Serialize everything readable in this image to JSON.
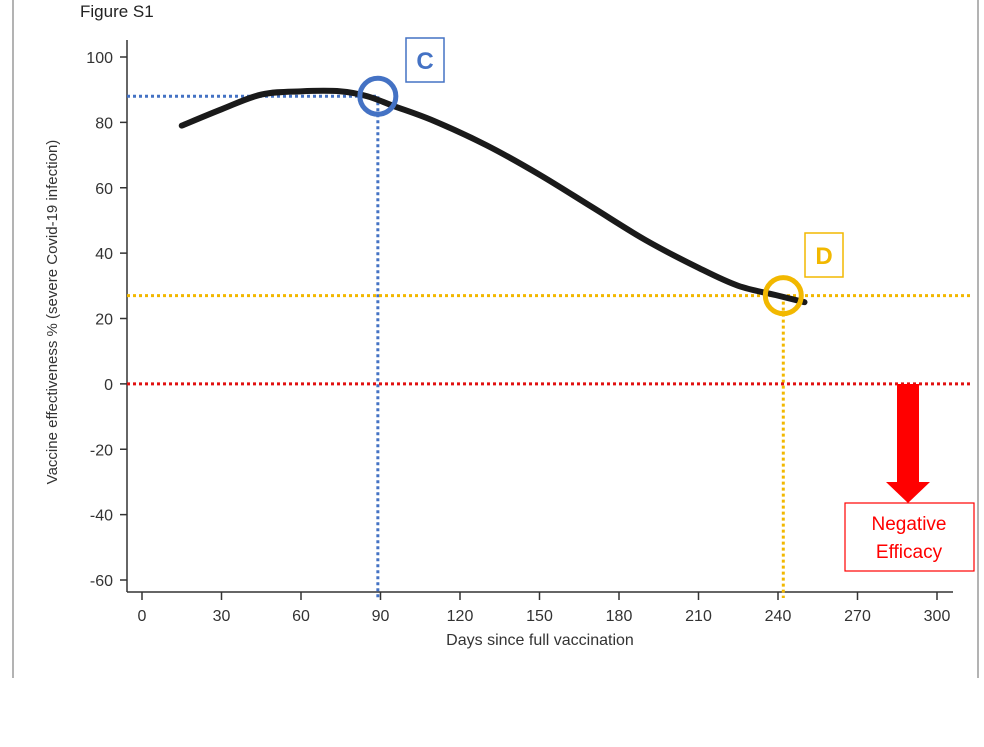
{
  "figure_label": "Figure S1",
  "chart_data": {
    "type": "line",
    "xlabel": "Days since full vaccination",
    "ylabel": "Vaccine effectiveness % (severe Covid-19 infection)",
    "xlim": [
      0,
      300
    ],
    "ylim": [
      -60,
      100
    ],
    "x_ticks": [
      0,
      30,
      60,
      90,
      120,
      150,
      180,
      210,
      240,
      270,
      300
    ],
    "y_ticks": [
      100,
      80,
      60,
      40,
      20,
      0,
      -20,
      -40,
      -60
    ],
    "grid": false,
    "series": [
      {
        "color": "#1a1a1a",
        "x": [
          15,
          30,
          45,
          60,
          75,
          85,
          95,
          110,
          130,
          150,
          170,
          190,
          210,
          225,
          240,
          250
        ],
        "y": [
          79,
          84,
          88.5,
          89.5,
          89.5,
          88,
          85,
          80.5,
          73,
          64,
          54,
          44,
          35.5,
          30,
          27,
          25
        ]
      }
    ],
    "annotations": [
      {
        "type": "marker",
        "label": "C",
        "x": 89,
        "y": 88,
        "color": "#4472c4"
      },
      {
        "type": "marker",
        "label": "D",
        "x": 242,
        "y": 27,
        "color": "#f2b800"
      },
      {
        "type": "hline",
        "y": 0,
        "color": "#e01010"
      },
      {
        "type": "arrow",
        "label": "Negative Efficacy",
        "color": "#ff0000"
      }
    ]
  }
}
